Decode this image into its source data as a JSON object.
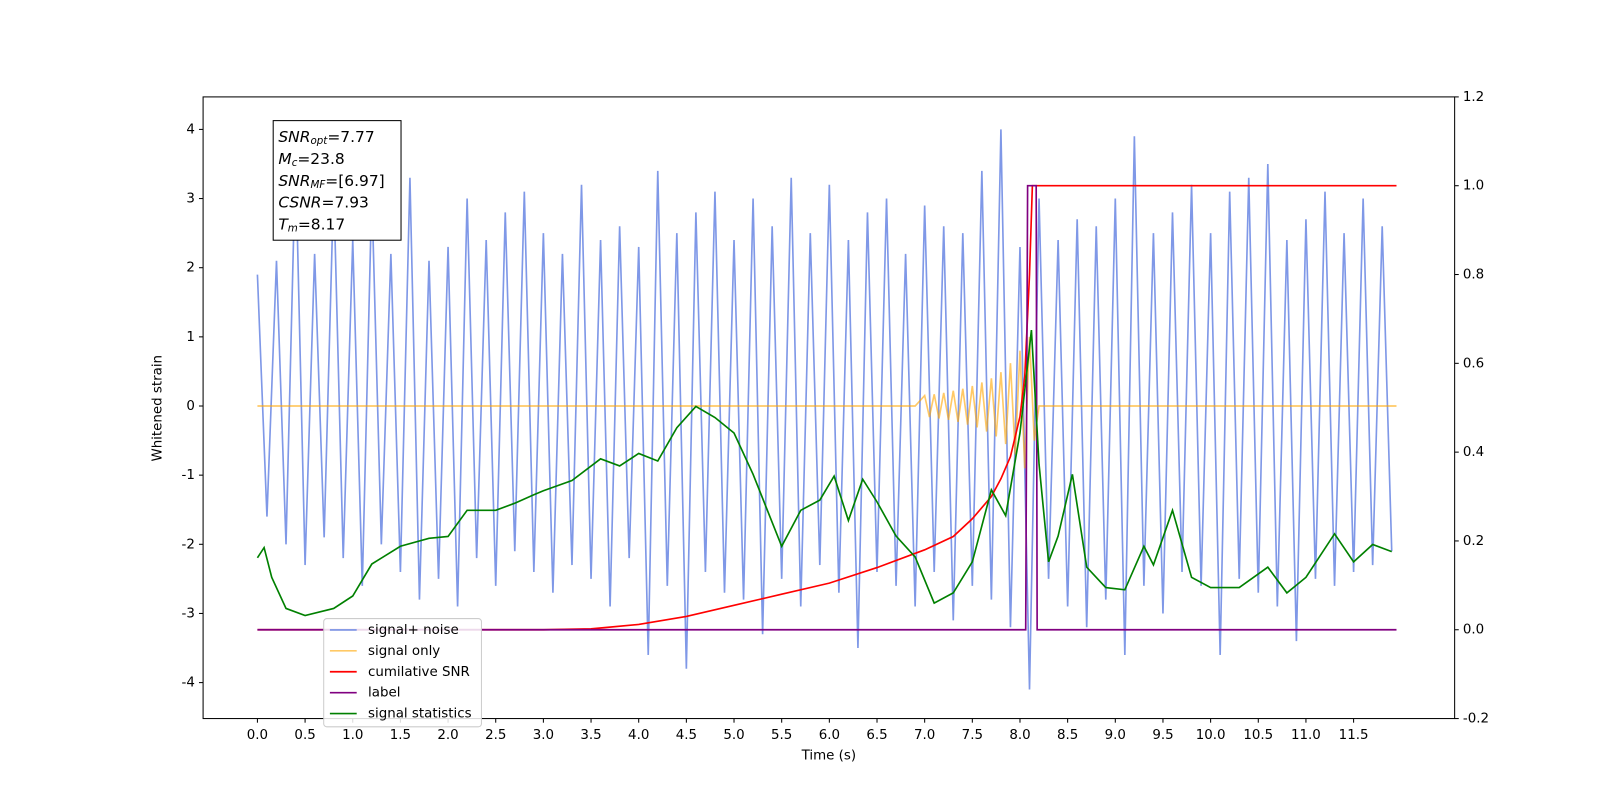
{
  "chart_data": {
    "type": "line",
    "xlabel": "Time (s)",
    "ylabel": "Whitened strain",
    "xlim": [
      -0.57,
      12.56
    ],
    "ylim": [
      -4.52,
      4.47
    ],
    "y2lim": [
      -0.2,
      1.2
    ],
    "xticks": [
      {
        "value": 0,
        "label": "0.0"
      },
      0.5,
      {
        "value": 1,
        "label": "1.0"
      },
      1.5,
      {
        "value": 2,
        "label": "2.0"
      },
      2.5,
      {
        "value": 3,
        "label": "3.0"
      },
      3.5,
      {
        "value": 4,
        "label": "4.0"
      },
      4.5,
      {
        "value": 5,
        "label": "5.0"
      },
      5.5,
      {
        "value": 6,
        "label": "6.0"
      },
      6.5,
      {
        "value": 7,
        "label": "7.0"
      },
      7.5,
      {
        "value": 8,
        "label": "8.0"
      },
      8.5,
      {
        "value": 9,
        "label": "9.0"
      },
      9.5,
      {
        "value": 10,
        "label": "10.0"
      },
      10.5,
      {
        "value": 11,
        "label": "11.0"
      },
      11.5
    ],
    "yticks": [
      -4,
      -3,
      -2,
      -1,
      0,
      1,
      2,
      3,
      4
    ],
    "y2ticks": [
      -0.2,
      {
        "value": 0,
        "label": "0.0"
      },
      0.2,
      0.4,
      0.6,
      0.8,
      {
        "value": 1,
        "label": "1.0"
      },
      1.2
    ],
    "legend": "lower left",
    "annotations": [
      {
        "symbol": "SNR",
        "sub": "opt",
        "text": "=7.77"
      },
      {
        "symbol": "M",
        "sub": "c",
        "text": "=23.8"
      },
      {
        "symbol": "SNR",
        "sub": "MF",
        "text": "=[6.97]"
      },
      {
        "symbol": "CSNR",
        "text": "=7.93"
      },
      {
        "symbol": "T",
        "sub": "m",
        "text": "=8.17"
      }
    ],
    "series": [
      {
        "name": "signal+ noise",
        "color": "#7892e6",
        "x": [
          0.0,
          0.1,
          0.2,
          0.3,
          0.4,
          0.5,
          0.6,
          0.7,
          0.8,
          0.9,
          1.0,
          1.1,
          1.2,
          1.3,
          1.4,
          1.5,
          1.6,
          1.7,
          1.8,
          1.9,
          2.0,
          2.1,
          2.2,
          2.3,
          2.4,
          2.5,
          2.6,
          2.7,
          2.8,
          2.9,
          3.0,
          3.1,
          3.2,
          3.3,
          3.4,
          3.5,
          3.6,
          3.7,
          3.8,
          3.9,
          4.0,
          4.1,
          4.2,
          4.3,
          4.4,
          4.5,
          4.6,
          4.7,
          4.8,
          4.9,
          5.0,
          5.1,
          5.2,
          5.3,
          5.4,
          5.5,
          5.6,
          5.7,
          5.8,
          5.9,
          6.0,
          6.1,
          6.2,
          6.3,
          6.4,
          6.5,
          6.6,
          6.7,
          6.8,
          6.9,
          7.0,
          7.1,
          7.2,
          7.3,
          7.4,
          7.5,
          7.6,
          7.7,
          7.8,
          7.9,
          8.0,
          8.1,
          8.2,
          8.3,
          8.4,
          8.5,
          8.6,
          8.7,
          8.8,
          8.9,
          9.0,
          9.1,
          9.2,
          9.3,
          9.4,
          9.5,
          9.6,
          9.7,
          9.8,
          9.9,
          10.0,
          10.1,
          10.2,
          10.3,
          10.4,
          10.5,
          10.6,
          10.7,
          10.8,
          10.9,
          11.0,
          11.1,
          11.2,
          11.3,
          11.4,
          11.5,
          11.6,
          11.7,
          11.8,
          11.9
        ],
        "values": [
          1.9,
          -1.6,
          2.1,
          -2.0,
          3.6,
          -2.3,
          2.2,
          -1.9,
          3.2,
          -2.2,
          2.4,
          -2.6,
          3.1,
          -2.0,
          2.2,
          -2.4,
          3.3,
          -2.8,
          2.1,
          -2.5,
          2.3,
          -2.9,
          3.0,
          -2.2,
          2.4,
          -2.6,
          2.8,
          -2.1,
          3.1,
          -2.4,
          2.5,
          -2.7,
          2.2,
          -2.3,
          3.2,
          -2.5,
          2.4,
          -2.9,
          2.6,
          -2.2,
          2.3,
          -3.6,
          3.4,
          -2.6,
          2.5,
          -3.8,
          2.8,
          -2.4,
          3.1,
          -2.7,
          2.4,
          -2.8,
          3.0,
          -3.3,
          2.6,
          -2.5,
          3.3,
          -2.9,
          2.5,
          -2.3,
          3.2,
          -2.7,
          2.4,
          -3.5,
          2.8,
          -2.4,
          3.0,
          -2.6,
          2.2,
          -2.9,
          2.9,
          -2.4,
          2.6,
          -3.1,
          2.5,
          -2.6,
          3.4,
          -2.8,
          4.0,
          -3.2,
          2.3,
          -4.1,
          3.0,
          -2.5,
          2.4,
          -2.9,
          2.7,
          -3.2,
          2.6,
          -2.8,
          3.0,
          -3.6,
          3.9,
          -2.6,
          2.5,
          -3.0,
          2.8,
          -2.4,
          3.2,
          -2.6,
          2.5,
          -3.6,
          3.1,
          -2.5,
          3.3,
          -2.7,
          3.5,
          -2.9,
          2.4,
          -3.4,
          2.7,
          -2.5,
          3.1,
          -2.6,
          2.5,
          -2.4,
          3.0,
          -2.3,
          2.6,
          -2.1
        ]
      },
      {
        "name": "signal only",
        "color": "#ffa500",
        "x": [
          0,
          6.9,
          7.0,
          7.05,
          7.1,
          7.15,
          7.2,
          7.25,
          7.3,
          7.35,
          7.4,
          7.45,
          7.5,
          7.55,
          7.6,
          7.65,
          7.7,
          7.75,
          7.8,
          7.85,
          7.9,
          7.95,
          8.0,
          8.05,
          8.1,
          8.15,
          8.2,
          11.95
        ],
        "values": [
          0,
          0,
          0.15,
          -0.16,
          0.17,
          -0.18,
          0.19,
          -0.2,
          0.22,
          -0.23,
          0.25,
          -0.27,
          0.29,
          -0.31,
          0.34,
          -0.37,
          0.4,
          -0.44,
          0.49,
          -0.55,
          0.62,
          -0.7,
          0.8,
          -0.9,
          1.0,
          -0.5,
          0,
          0
        ]
      },
      {
        "name": "cumilative SNR",
        "color": "#ff0000",
        "axis": "y2",
        "x": [
          0,
          3.0,
          3.5,
          4.0,
          4.5,
          5.0,
          5.5,
          6.0,
          6.5,
          7.0,
          7.3,
          7.5,
          7.7,
          7.8,
          7.9,
          8.0,
          8.05,
          8.1,
          8.13,
          8.17,
          11.95
        ],
        "values": [
          0,
          0,
          0.002,
          0.012,
          0.03,
          0.055,
          0.08,
          0.105,
          0.14,
          0.18,
          0.21,
          0.25,
          0.3,
          0.34,
          0.39,
          0.48,
          0.57,
          0.8,
          1.0,
          1.0,
          1.0
        ]
      },
      {
        "name": "label",
        "color": "#800080",
        "axis": "y2",
        "x": [
          0,
          8.06,
          8.08,
          8.17,
          8.18,
          11.95
        ],
        "values": [
          0,
          0,
          1,
          1,
          0,
          0
        ]
      },
      {
        "name": "signal statistics",
        "color": "#008000",
        "axis": "y2",
        "x": [
          0,
          0.07,
          0.15,
          0.3,
          0.5,
          0.8,
          1.0,
          1.2,
          1.5,
          1.8,
          2.0,
          2.2,
          2.5,
          2.7,
          2.9,
          3.0,
          3.3,
          3.6,
          3.8,
          4.0,
          4.2,
          4.4,
          4.6,
          4.8,
          5.0,
          5.2,
          5.5,
          5.7,
          5.9,
          6.05,
          6.2,
          6.35,
          6.5,
          6.7,
          6.9,
          7.1,
          7.3,
          7.5,
          7.7,
          7.85,
          8.0,
          8.12,
          8.2,
          8.3,
          8.4,
          8.55,
          8.7,
          8.9,
          9.1,
          9.3,
          9.4,
          9.6,
          9.8,
          10.0,
          10.3,
          10.6,
          10.8,
          11.0,
          11.3,
          11.5,
          11.7,
          11.9
        ],
        "values": [
          0.162,
          0.185,
          0.118,
          0.048,
          0.032,
          0.048,
          0.076,
          0.148,
          0.188,
          0.206,
          0.21,
          0.269,
          0.269,
          0.285,
          0.304,
          0.313,
          0.336,
          0.385,
          0.369,
          0.397,
          0.38,
          0.455,
          0.503,
          0.478,
          0.443,
          0.35,
          0.188,
          0.269,
          0.292,
          0.346,
          0.246,
          0.339,
          0.288,
          0.211,
          0.164,
          0.06,
          0.083,
          0.153,
          0.315,
          0.257,
          0.443,
          0.675,
          0.373,
          0.153,
          0.211,
          0.35,
          0.141,
          0.095,
          0.09,
          0.188,
          0.146,
          0.269,
          0.118,
          0.095,
          0.095,
          0.141,
          0.083,
          0.118,
          0.216,
          0.153,
          0.192,
          0.176
        ]
      }
    ]
  }
}
